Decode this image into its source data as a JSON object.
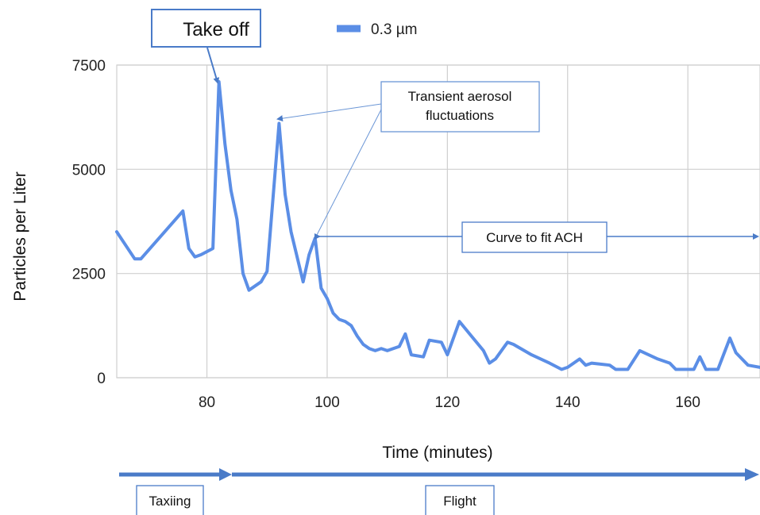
{
  "chart_data": {
    "type": "line",
    "title": "",
    "xlabel": "Time (minutes)",
    "ylabel": "Particles per Liter",
    "xlim": [
      65,
      172
    ],
    "ylim": [
      0,
      7500
    ],
    "grid": true,
    "legend_position": "top",
    "x_ticks": [
      "80",
      "100",
      "120",
      "140",
      "160"
    ],
    "y_ticks": [
      "0",
      "2500",
      "5000",
      "7500"
    ],
    "series": [
      {
        "name": "0.3 µm",
        "color": "#5b8ee6",
        "points": [
          [
            65,
            3500
          ],
          [
            68,
            2850
          ],
          [
            69,
            2850
          ],
          [
            76,
            4000
          ],
          [
            77,
            3100
          ],
          [
            78,
            2900
          ],
          [
            79,
            2950
          ],
          [
            81,
            3100
          ],
          [
            82,
            7100
          ],
          [
            83,
            5600
          ],
          [
            84,
            4500
          ],
          [
            85,
            3800
          ],
          [
            86,
            2500
          ],
          [
            87,
            2100
          ],
          [
            89,
            2300
          ],
          [
            90,
            2550
          ],
          [
            92,
            6100
          ],
          [
            93,
            4400
          ],
          [
            94,
            3500
          ],
          [
            96,
            2300
          ],
          [
            97,
            2950
          ],
          [
            98,
            3350
          ],
          [
            99,
            2150
          ],
          [
            100,
            1900
          ],
          [
            101,
            1550
          ],
          [
            102,
            1400
          ],
          [
            103,
            1350
          ],
          [
            104,
            1250
          ],
          [
            105,
            1000
          ],
          [
            106,
            800
          ],
          [
            107,
            700
          ],
          [
            108,
            650
          ],
          [
            109,
            700
          ],
          [
            110,
            650
          ],
          [
            111,
            700
          ],
          [
            112,
            750
          ],
          [
            113,
            1050
          ],
          [
            114,
            550
          ],
          [
            116,
            500
          ],
          [
            117,
            900
          ],
          [
            119,
            850
          ],
          [
            120,
            550
          ],
          [
            122,
            1350
          ],
          [
            124,
            1000
          ],
          [
            126,
            650
          ],
          [
            127,
            350
          ],
          [
            128,
            450
          ],
          [
            130,
            850
          ],
          [
            131,
            800
          ],
          [
            134,
            550
          ],
          [
            137,
            350
          ],
          [
            139,
            200
          ],
          [
            140,
            250
          ],
          [
            142,
            450
          ],
          [
            143,
            300
          ],
          [
            144,
            350
          ],
          [
            147,
            300
          ],
          [
            148,
            200
          ],
          [
            150,
            200
          ],
          [
            152,
            650
          ],
          [
            155,
            450
          ],
          [
            157,
            350
          ],
          [
            158,
            200
          ],
          [
            161,
            200
          ],
          [
            162,
            500
          ],
          [
            163,
            200
          ],
          [
            165,
            200
          ],
          [
            167,
            950
          ],
          [
            168,
            600
          ],
          [
            170,
            300
          ],
          [
            172,
            250
          ]
        ]
      }
    ],
    "annotations": [
      {
        "text": "Take off"
      },
      {
        "text": "Transient aerosol fluctuations"
      },
      {
        "text": "Curve to fit ACH"
      }
    ],
    "phases": [
      {
        "label": "Taxiing"
      },
      {
        "label": "Flight"
      }
    ]
  }
}
